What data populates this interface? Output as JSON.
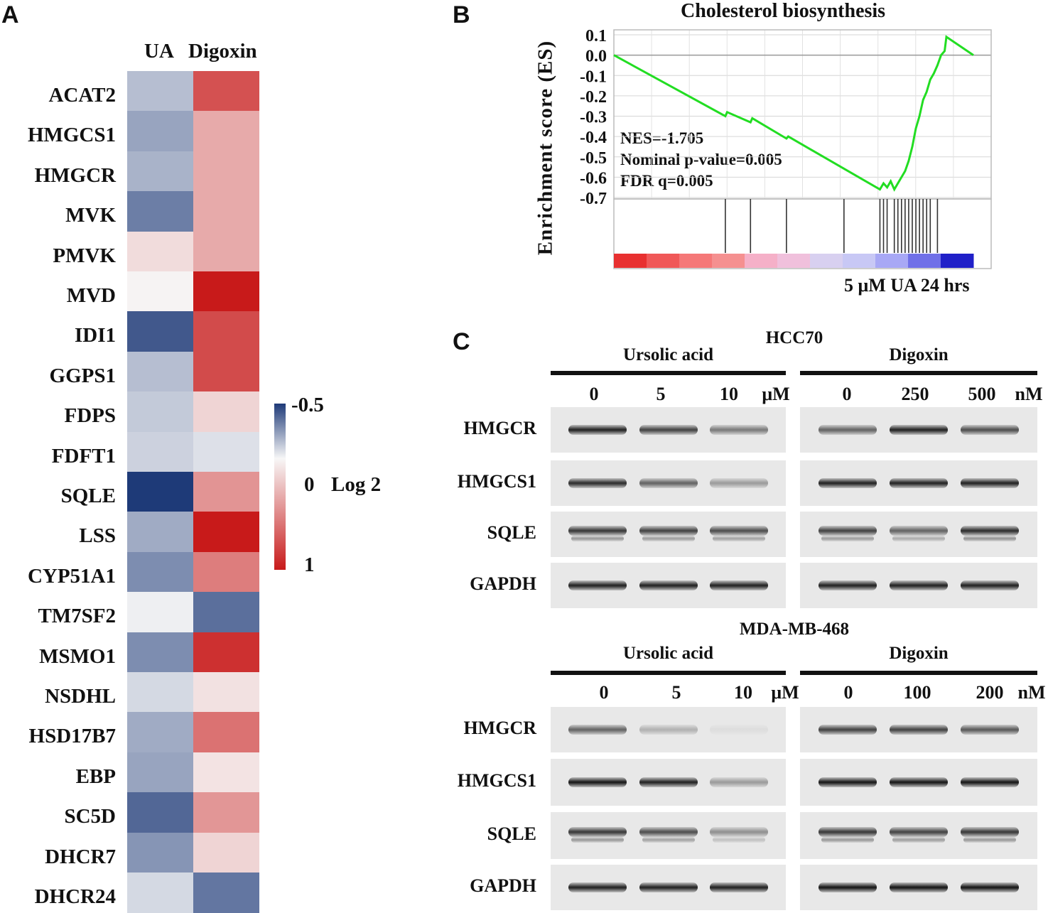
{
  "panelA": {
    "letter": "A",
    "columns": [
      "UA",
      "Digoxin"
    ],
    "genes": [
      "ACAT2",
      "HMGCS1",
      "HMGCR",
      "MVK",
      "PMVK",
      "MVD",
      "IDI1",
      "GGPS1",
      "FDPS",
      "FDFT1",
      "SQLE",
      "LSS",
      "CYP51A1",
      "TM7SF2",
      "MSMO1",
      "NSDHL",
      "HSD17B7",
      "EBP",
      "SC5D",
      "DHCR7",
      "DHCR24"
    ],
    "ua_values": [
      -0.15,
      -0.22,
      -0.18,
      -0.32,
      0.12,
      0.02,
      -0.42,
      -0.15,
      -0.12,
      -0.1,
      -0.5,
      -0.2,
      -0.28,
      -0.02,
      -0.28,
      -0.08,
      -0.2,
      -0.22,
      -0.38,
      -0.26,
      -0.08
    ],
    "digoxin_values": [
      0.75,
      0.35,
      0.35,
      0.35,
      0.35,
      1.0,
      0.78,
      0.78,
      0.16,
      -0.06,
      0.45,
      1.0,
      0.55,
      -0.36,
      0.9,
      0.1,
      0.6,
      0.09,
      0.44,
      0.16,
      -0.34
    ],
    "colorbar": {
      "top": "-0.5",
      "mid": "0",
      "bottom": "1",
      "title": "Log 2"
    },
    "colors": {
      "negative": "#1e3a78",
      "zero": "#f7f7f7",
      "positive": "#c81a1a"
    }
  },
  "panelB": {
    "letter": "B",
    "chart_data": {
      "type": "line",
      "title": "Cholesterol biosynthesis",
      "ylabel": "Enrichment score (ES)",
      "xlabel": "5 μM UA 24 hrs",
      "ylim": [
        -0.7,
        0.1
      ],
      "yticks": [
        "0.1",
        "0.0",
        "-0.1",
        "-0.2",
        "-0.3",
        "-0.4",
        "-0.5",
        "-0.6",
        "-0.7"
      ],
      "series": [
        {
          "name": "ES",
          "color": "#22dd22",
          "x": [
            0,
            31,
            31.5,
            38,
            38.5,
            48,
            48.5,
            74,
            75,
            76,
            77,
            78,
            79,
            80,
            81,
            82,
            83,
            84,
            85,
            86,
            87,
            88,
            89,
            90,
            91,
            92,
            92.5,
            100
          ],
          "y": [
            0.0,
            -0.3,
            -0.28,
            -0.33,
            -0.31,
            -0.41,
            -0.4,
            -0.66,
            -0.63,
            -0.65,
            -0.62,
            -0.66,
            -0.63,
            -0.6,
            -0.57,
            -0.52,
            -0.45,
            -0.36,
            -0.3,
            -0.22,
            -0.18,
            -0.12,
            -0.09,
            -0.05,
            0.0,
            0.02,
            0.09,
            0.0
          ]
        }
      ],
      "hits": [
        31,
        38,
        48,
        64,
        74,
        75,
        76,
        78,
        79,
        80,
        81,
        82,
        83,
        84,
        85,
        86,
        87,
        88,
        90
      ],
      "annotations": [
        "NES=-1.705",
        "Nominal p-value=0.005",
        "FDR q=0.005"
      ],
      "rank_colors": [
        "#e83030",
        "#f05858",
        "#f57878",
        "#f59090",
        "#f5b0c8",
        "#f0c0dc",
        "#d8d0f0",
        "#c8c8f5",
        "#a8a8f5",
        "#7070e8",
        "#2020c8"
      ]
    }
  },
  "panelC": {
    "letter": "C",
    "sections": [
      {
        "cell_line": "HCC70",
        "groups": [
          {
            "name": "Ursolic acid",
            "doses": [
              "0",
              "5",
              "10"
            ],
            "unit": "μM"
          },
          {
            "name": "Digoxin",
            "doses": [
              "0",
              "250",
              "500"
            ],
            "unit": "nM"
          }
        ],
        "proteins": [
          "HMGCR",
          "HMGCS1",
          "SQLE",
          "GAPDH"
        ],
        "intensity": [
          [
            0.9,
            0.75,
            0.5,
            0.6,
            0.9,
            0.7
          ],
          [
            0.85,
            0.6,
            0.35,
            0.9,
            0.9,
            0.9
          ],
          [
            0.8,
            0.75,
            0.7,
            0.75,
            0.6,
            0.85
          ],
          [
            0.9,
            0.9,
            0.9,
            0.9,
            0.9,
            0.9
          ]
        ]
      },
      {
        "cell_line": "MDA-MB-468",
        "groups": [
          {
            "name": "Ursolic acid",
            "doses": [
              "0",
              "5",
              "10"
            ],
            "unit": "μM"
          },
          {
            "name": "Digoxin",
            "doses": [
              "0",
              "100",
              "200"
            ],
            "unit": "nM"
          }
        ],
        "proteins": [
          "HMGCR",
          "HMGCS1",
          "SQLE",
          "GAPDH"
        ],
        "intensity": [
          [
            0.6,
            0.25,
            0.05,
            0.75,
            0.75,
            0.65
          ],
          [
            0.95,
            0.9,
            0.35,
            0.95,
            0.95,
            0.95
          ],
          [
            0.8,
            0.7,
            0.4,
            0.8,
            0.75,
            0.8
          ],
          [
            0.9,
            0.9,
            0.9,
            0.95,
            0.95,
            0.95
          ]
        ]
      }
    ]
  }
}
